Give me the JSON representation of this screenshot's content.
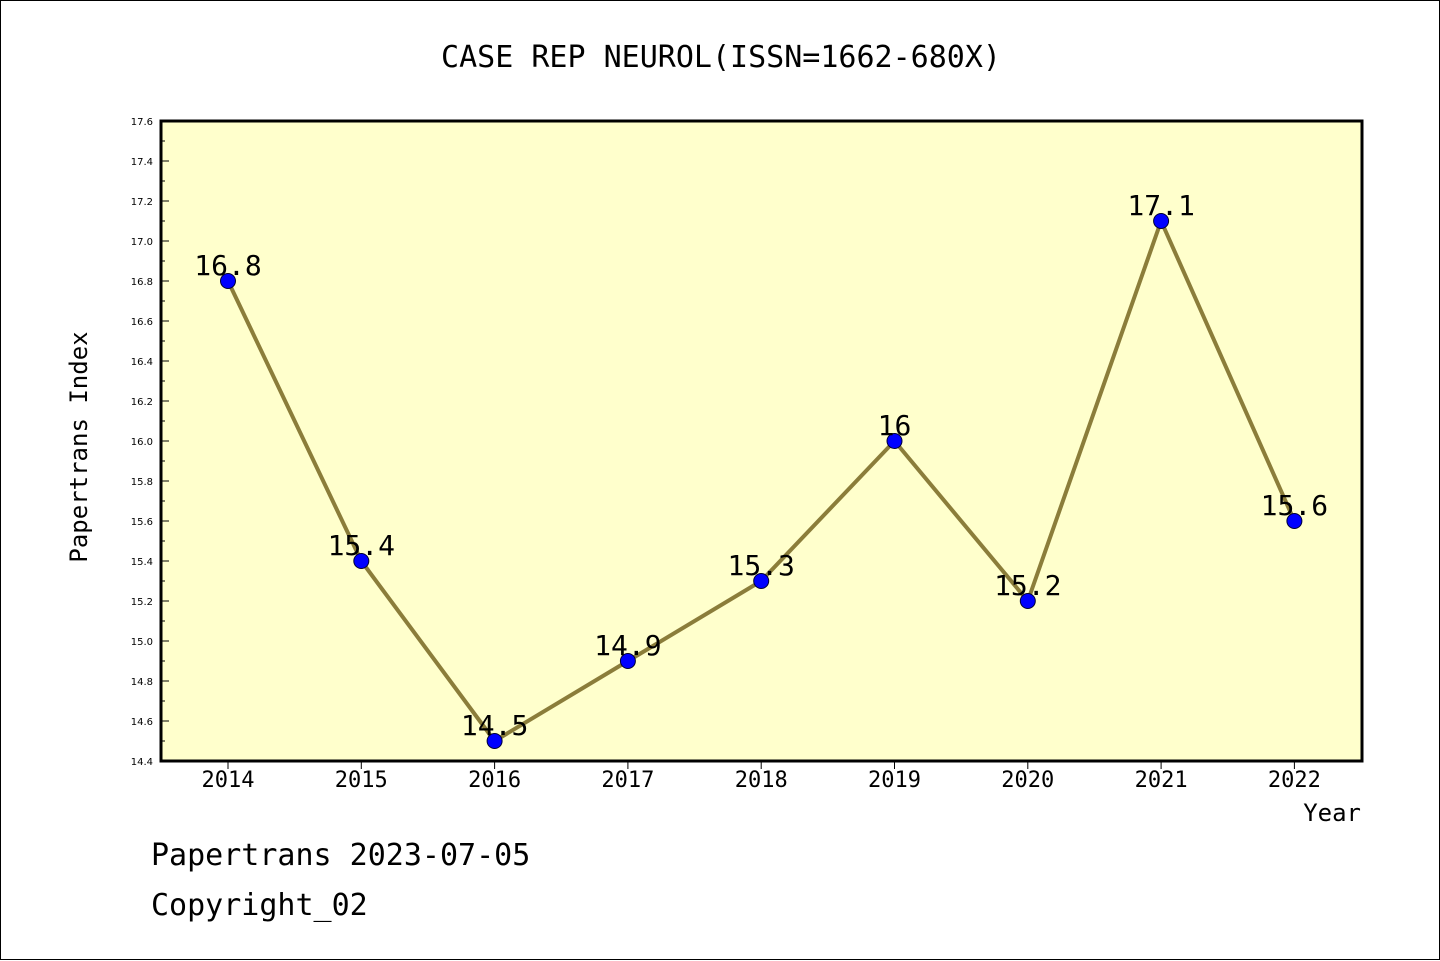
{
  "chart_data": {
    "type": "line",
    "title": "CASE REP NEUROL(ISSN=1662-680X)",
    "xlabel": "Year",
    "ylabel": "Papertrans Index",
    "categories": [
      "2014",
      "2015",
      "2016",
      "2017",
      "2018",
      "2019",
      "2020",
      "2021",
      "2022"
    ],
    "values": [
      16.8,
      15.4,
      14.5,
      14.9,
      15.3,
      16.0,
      15.2,
      17.1,
      15.6
    ],
    "data_labels": [
      "16.8",
      "15.4",
      "14.5",
      "14.9",
      "15.3",
      "16",
      "15.2",
      "17.1",
      "15.6"
    ],
    "ylim": [
      14.4,
      17.6
    ],
    "y_ticks": [
      "14.4",
      "14.6",
      "14.8",
      "15.0",
      "15.2",
      "15.4",
      "15.6",
      "15.8",
      "16.0",
      "16.2",
      "16.4",
      "16.6",
      "16.8",
      "17.0",
      "17.2",
      "17.4",
      "17.6"
    ],
    "grid": false,
    "legend": "none",
    "colors": {
      "plot_background": "#ffffcc",
      "line": "#8b7d3a",
      "marker": "#0000ff"
    }
  },
  "footer": {
    "source": "Papertrans 2023-07-05",
    "copyright": "Copyright_02"
  }
}
